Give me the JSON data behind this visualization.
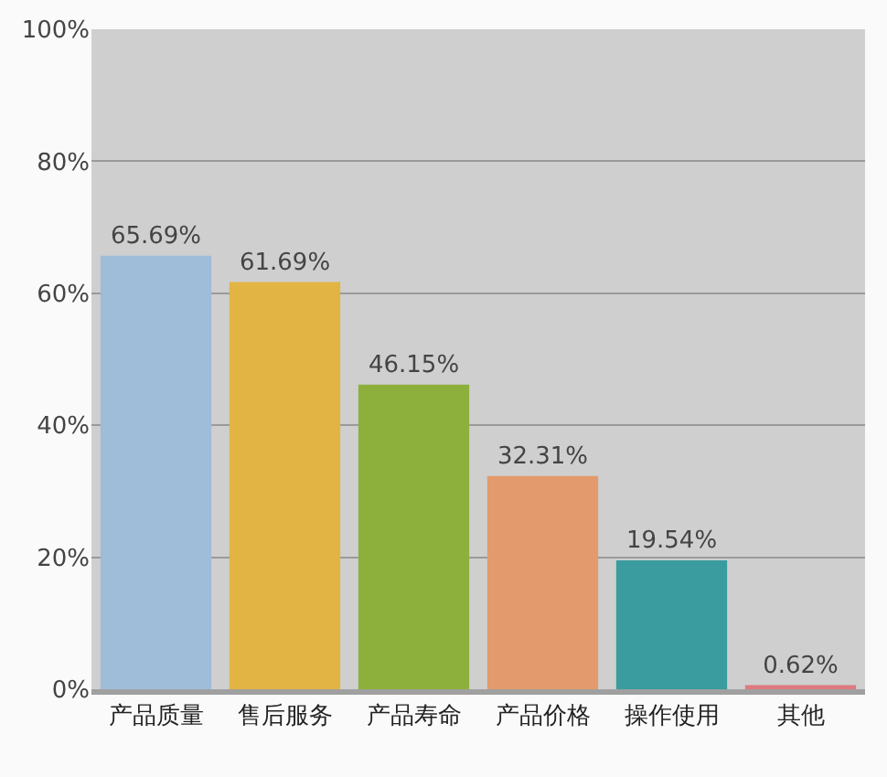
{
  "chart_data": {
    "type": "bar",
    "categories": [
      "产品质量",
      "售后服务",
      "产品寿命",
      "产品价格",
      "操作使用",
      "其他"
    ],
    "values": [
      65.69,
      61.69,
      46.15,
      32.31,
      19.54,
      0.62
    ],
    "colors": [
      "#9fbcd8",
      "#e2b443",
      "#8db03c",
      "#e39a6c",
      "#3a9c9e",
      "#e07880"
    ],
    "value_labels": [
      "65.69%",
      "61.69%",
      "46.15%",
      "32.31%",
      "19.54%",
      "0.62%"
    ],
    "ylim": [
      0,
      100
    ],
    "yticks": [
      {
        "value": 0,
        "label": "0%"
      },
      {
        "value": 20,
        "label": "20%"
      },
      {
        "value": 40,
        "label": "40%"
      },
      {
        "value": 60,
        "label": "60%"
      },
      {
        "value": 80,
        "label": "80%"
      },
      {
        "value": 100,
        "label": "100%"
      }
    ],
    "grid": "y",
    "legend": false
  }
}
